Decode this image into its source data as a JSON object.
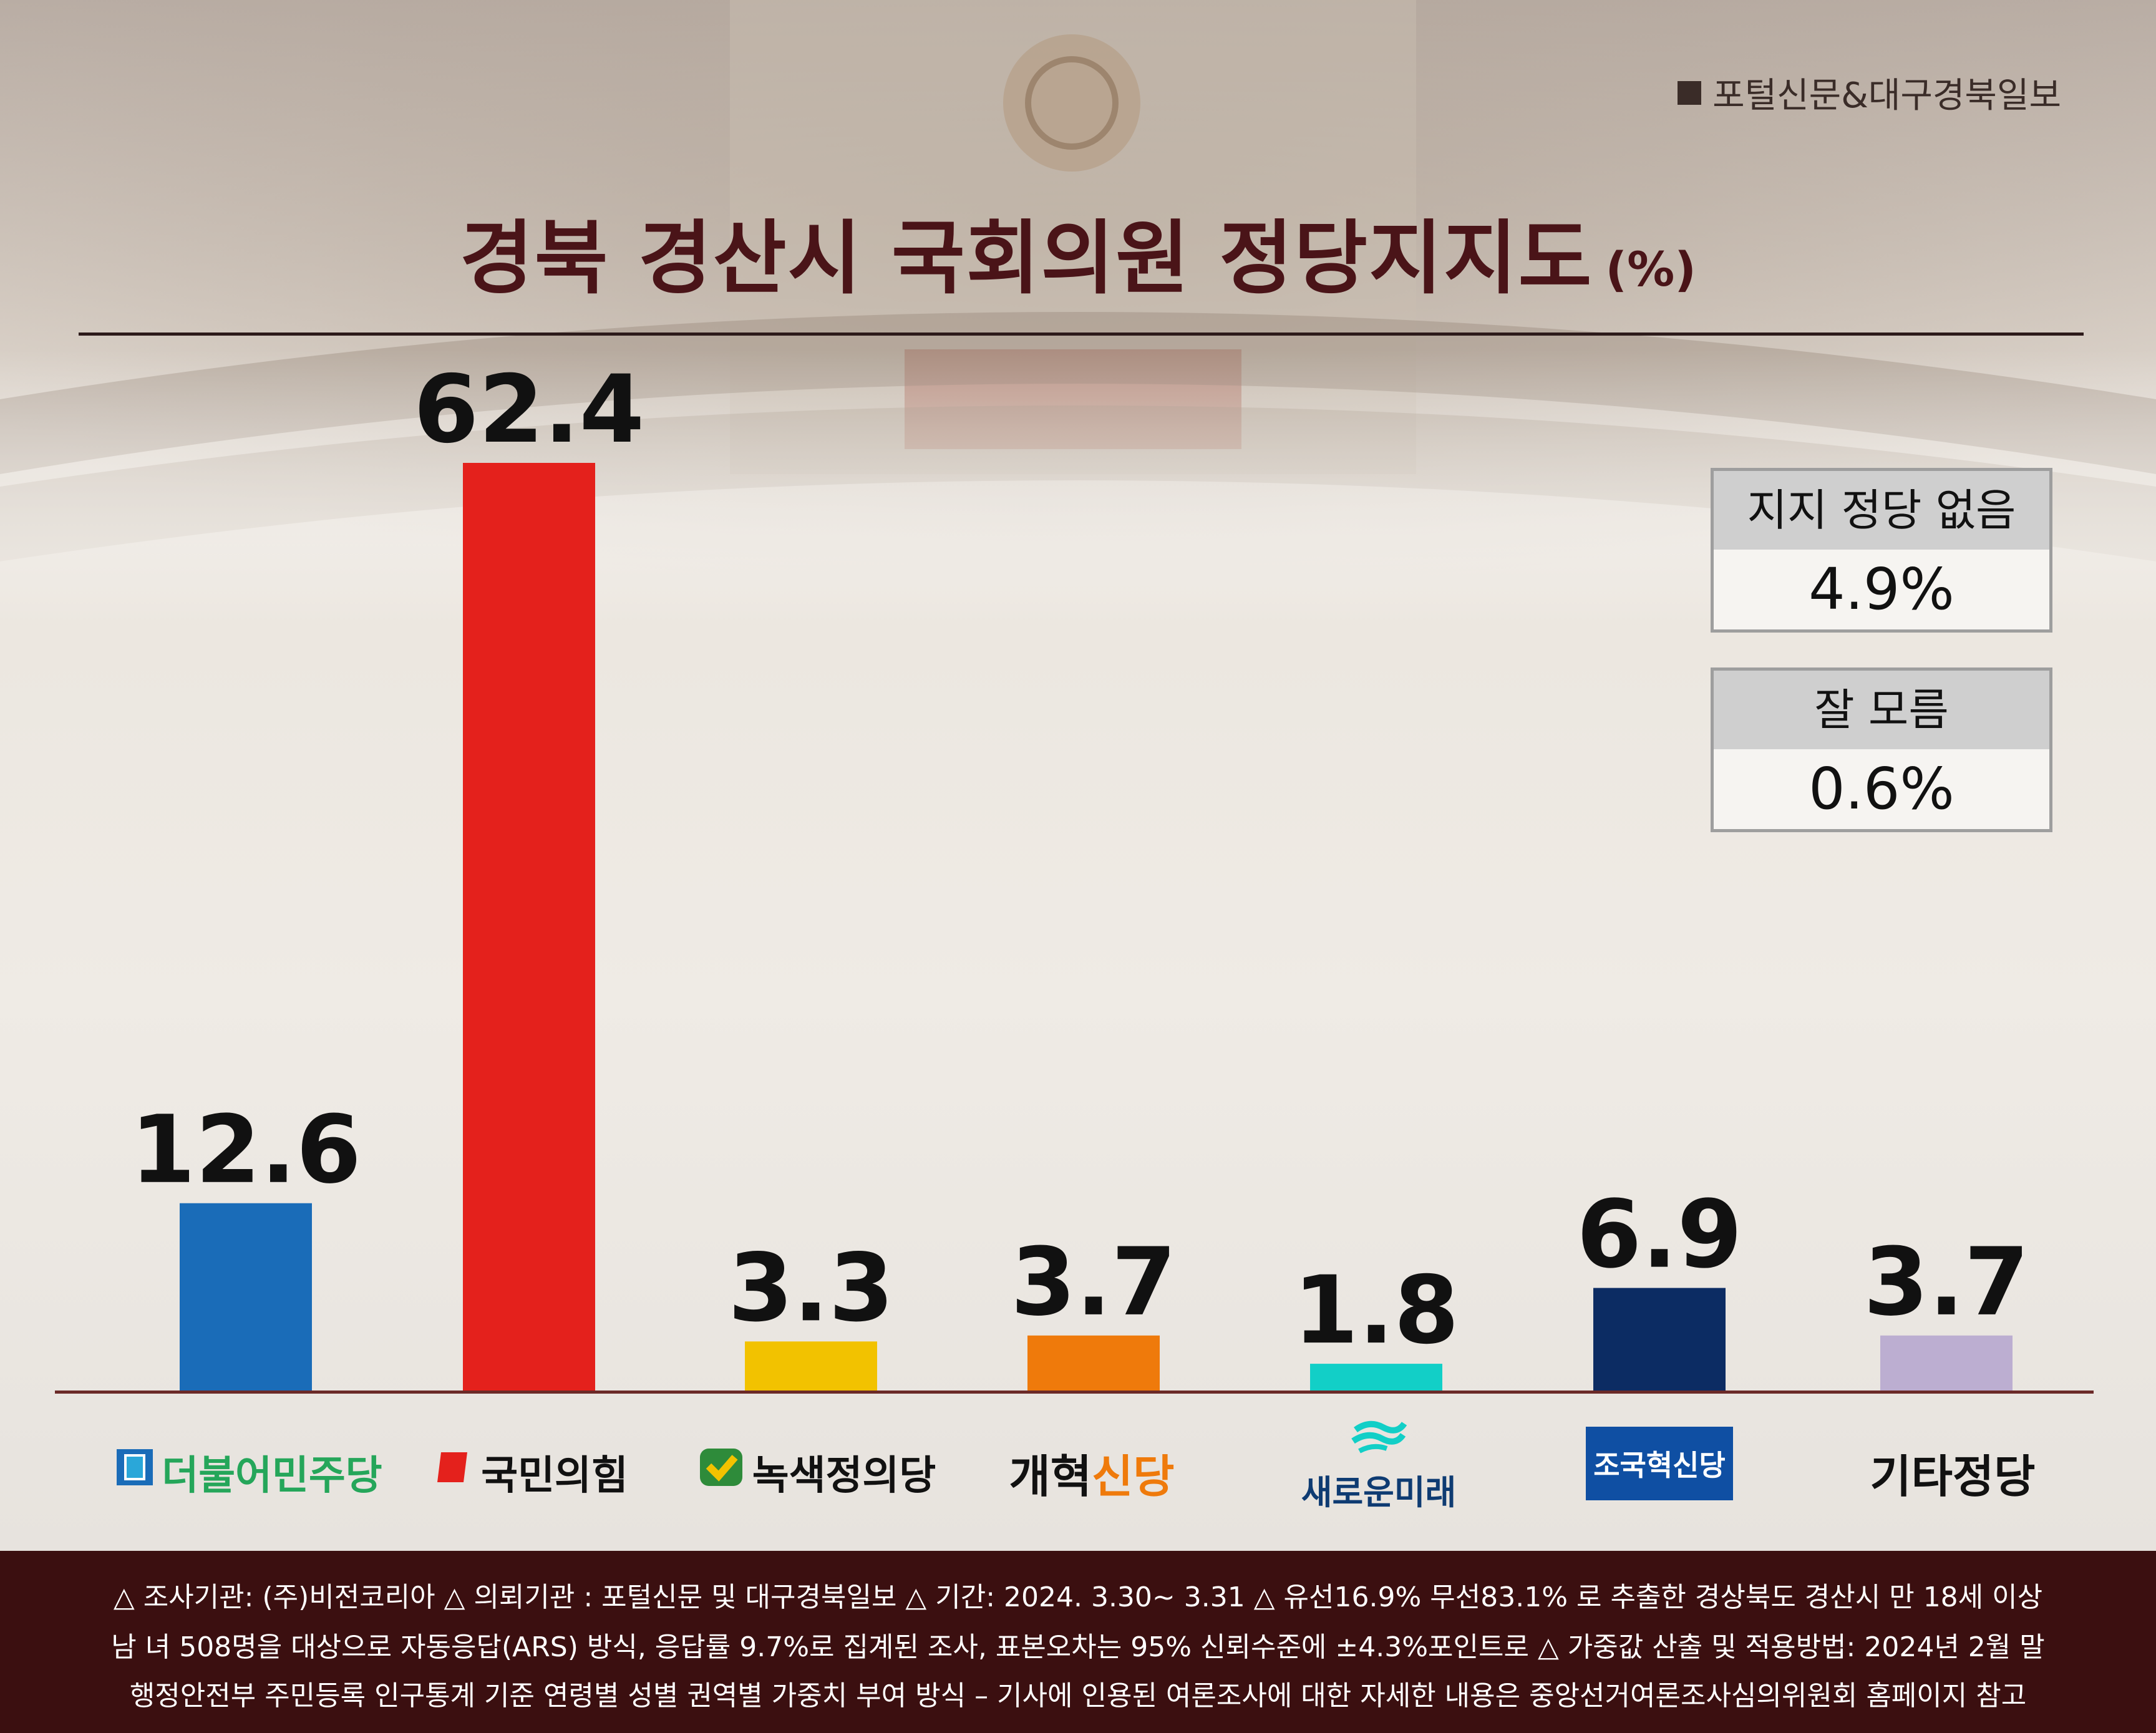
{
  "source": "포털신문&대구경북일보",
  "title": "경북 경산시 국회의원 정당지지도",
  "title_unit": "(%)",
  "chart_data": {
    "type": "bar",
    "title": "경북 경산시 국회의원 정당지지도",
    "unit": "(%)",
    "categories": [
      "더불어민주당",
      "국민의힘",
      "녹색정의당",
      "개혁신당",
      "새로운미래",
      "조국혁신당",
      "기타정당"
    ],
    "values": [
      12.6,
      62.4,
      3.3,
      3.7,
      1.8,
      6.9,
      3.7
    ],
    "value_labels": [
      "12.6",
      "62.4",
      "3.3",
      "3.7",
      "1.8",
      "6.9",
      "3.7"
    ],
    "colors": [
      "#1a6cb8",
      "#e4211c",
      "#f2c200",
      "#ef7a0b",
      "#12cfc7",
      "#0c2c63",
      "#bcaed1"
    ],
    "ylim": [
      0,
      64
    ],
    "grid": false,
    "legend": "none"
  },
  "side_boxes": [
    {
      "label": "지지 정당 없음",
      "value": "4.9%"
    },
    {
      "label": "잘 모름",
      "value": "0.6%"
    }
  ],
  "party_labels": [
    {
      "text": "더불어민주당",
      "color": "#25a65a",
      "icon": "democratic-party-logo-icon"
    },
    {
      "text": "국민의힘",
      "color": "#111111",
      "icon": "ppp-logo-icon"
    },
    {
      "text": "녹색정의당",
      "color": "#111111",
      "icon": "green-check-logo-icon"
    },
    {
      "text_a": "개혁",
      "text_b": "신당",
      "color_a": "#111111",
      "color_b": "#ef7a0b"
    },
    {
      "text": "새로운미래",
      "color": "#0e3b72",
      "icon": "new-future-wave-icon"
    },
    {
      "text": "조국혁신당",
      "color": "#ffffff",
      "bg": "#0f4fa3"
    },
    {
      "text": "기타정당",
      "color": "#111111"
    }
  ],
  "footer": {
    "line1": "△ 조사기관: (주)비전코리아  △ 의뢰기관 : 포털신문 및 대구경북일보  △ 기간: 2024. 3.30~ 3.31  △ 유선16.9% 무선83.1% 로 추출한 경상북도 경산시 만 18세 이상",
    "line2": "남 녀 508명을 대상으로 자동응답(ARS) 방식, 응답률 9.7%로 집계된 조사, 표본오차는 95% 신뢰수준에 ±4.3%포인트로  △ 가중값 산출 및 적용방법: 2024년 2월 말",
    "line3": "행정안전부 주민등록 인구통계 기준 연령별 성별 권역별 가중치 부여 방식 – 기사에 인용된 여론조사에 대한 자세한 내용은 중앙선거여론조사심의위원회 홈페이지 참고"
  }
}
